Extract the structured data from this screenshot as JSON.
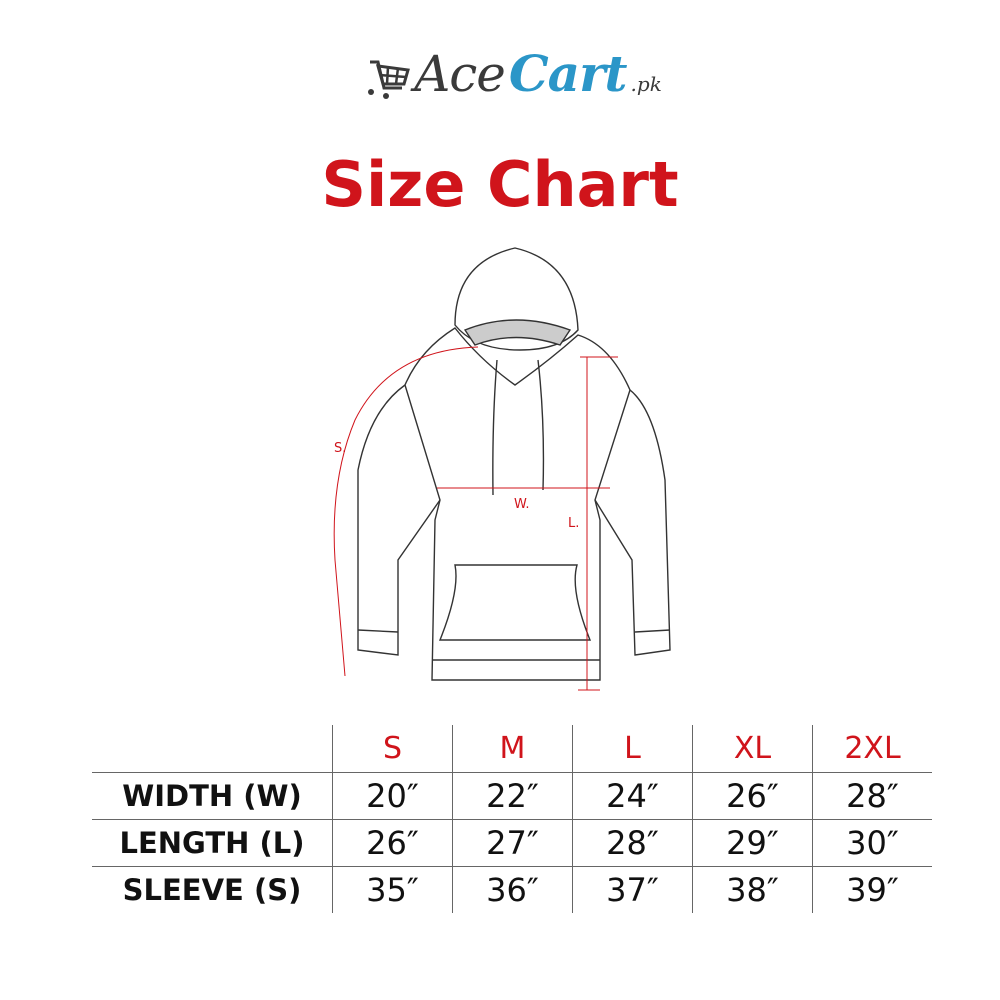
{
  "brand": {
    "name_part1": "Ace",
    "name_part2": "Cart",
    "suffix": ".pk",
    "colors": {
      "dark": "#3a3a3a",
      "blue": "#2b96c8"
    },
    "icon": "shopping-cart-icon"
  },
  "title": "Size Chart",
  "accent_color": "#d0141b",
  "diagram": {
    "labels": {
      "sleeve": "S.",
      "width": "W.",
      "length": "L."
    }
  },
  "table": {
    "sizes": [
      "S",
      "M",
      "L",
      "XL",
      "2XL"
    ],
    "rows": [
      {
        "label": "WIDTH (W)",
        "values": [
          "20″",
          "22″",
          "24″",
          "26″",
          "28″"
        ]
      },
      {
        "label": "LENGTH (L)",
        "values": [
          "26″",
          "27″",
          "28″",
          "29″",
          "30″"
        ]
      },
      {
        "label": "SLEEVE (S)",
        "values": [
          "35″",
          "36″",
          "37″",
          "38″",
          "39″"
        ]
      }
    ]
  }
}
